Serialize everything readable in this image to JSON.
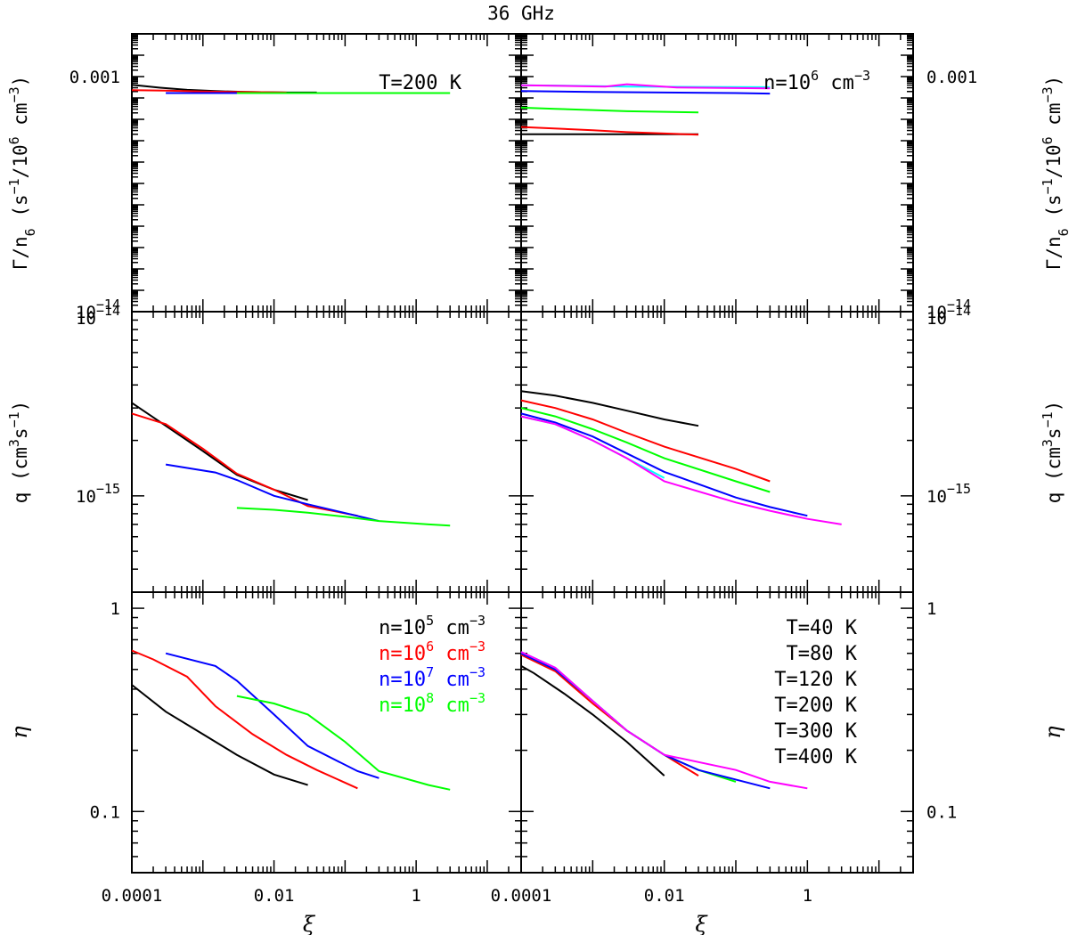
{
  "title": "36 GHz",
  "chart_data": {
    "type": "line",
    "x_axis": {
      "label": "ξ",
      "scale": "log",
      "range": [
        0.0001,
        30
      ],
      "tick_labels": [
        "0.0001",
        "0.01",
        "1"
      ]
    },
    "rows": [
      {
        "id": "gamma",
        "ylabel": "Γ/n6 (s−1/106 cm−3)",
        "scale": "log",
        "range": [
          1e-14,
          0.1
        ],
        "tick_labels": [
          "10−14",
          "0.001"
        ]
      },
      {
        "id": "q",
        "ylabel": "q (cm3s−1)",
        "scale": "log",
        "range": [
          3e-16,
          1e-14
        ],
        "tick_labels": [
          "10−14",
          "10−15"
        ]
      },
      {
        "id": "eta",
        "ylabel": "η",
        "scale": "log",
        "range": [
          0.05,
          1.2
        ],
        "tick_labels": [
          "1",
          "0.1"
        ]
      }
    ],
    "panels": [
      {
        "row": "gamma",
        "col": "left",
        "annotation": "T=200 K",
        "series": [
          {
            "color": "#000000",
            "x": [
              0.0001,
              0.00025,
              0.0006,
              0.0015,
              0.004,
              0.015,
              0.04
            ],
            "y": [
              0.00041,
              0.0003,
              0.00024,
              0.00021,
              0.00019,
              0.00018,
              0.00018
            ]
          },
          {
            "color": "#ff0000",
            "x": [
              0.0001,
              0.0003,
              0.001,
              0.004,
              0.015
            ],
            "y": [
              0.00023,
              0.00022,
              0.0002,
              0.00019,
              0.00018
            ]
          },
          {
            "color": "#0000ff",
            "x": [
              0.0003,
              0.001,
              0.004,
              0.02,
              0.3
            ],
            "y": [
              0.00017,
              0.00017,
              0.00017,
              0.00017,
              0.00017
            ]
          },
          {
            "color": "#00ff00",
            "x": [
              0.003,
              0.01,
              0.03,
              0.3,
              3.0
            ],
            "y": [
              0.00017,
              0.00017,
              0.00017,
              0.00017,
              0.00017
            ]
          }
        ]
      },
      {
        "row": "gamma",
        "col": "right",
        "annotation": "n=10^6 cm^-3",
        "annotation_parts": {
          "base": "n=10",
          "exp1": "6",
          "mid": " cm",
          "exp2": "−3"
        },
        "series": [
          {
            "color": "#000000",
            "x": [
              0.0001,
              0.03
            ],
            "y": [
              2e-06,
              2e-06
            ]
          },
          {
            "color": "#ff0000",
            "x": [
              0.0001,
              0.001,
              0.003,
              0.03
            ],
            "y": [
              4.4e-06,
              3.1e-06,
              2.5e-06,
              1.9e-06
            ]
          },
          {
            "color": "#00ff00",
            "x": [
              0.0001,
              0.0003,
              0.001,
              0.003,
              0.03
            ],
            "y": [
              3.5e-05,
              3.1e-05,
              2.7e-05,
              2.4e-05,
              2.1e-05
            ]
          },
          {
            "color": "#0000ff",
            "x": [
              0.0001,
              0.001,
              0.01,
              0.1,
              0.3
            ],
            "y": [
              0.00021,
              0.00019,
              0.00018,
              0.00017,
              0.00016
            ]
          },
          {
            "color": "#00ffff",
            "x": [
              0.0001,
              0.001,
              0.003,
              0.03,
              0.3
            ],
            "y": [
              0.00039,
              0.00036,
              0.00034,
              0.00033,
              0.00032
            ]
          },
          {
            "color": "#ff00ff",
            "x": [
              0.0001,
              0.0015,
              0.003,
              0.015,
              0.3
            ],
            "y": [
              0.00039,
              0.00034,
              0.00044,
              0.00031,
              0.00028
            ]
          }
        ]
      },
      {
        "row": "q",
        "col": "left",
        "series": [
          {
            "color": "#000000",
            "x": [
              0.0001,
              0.0003,
              0.001,
              0.003,
              0.01,
              0.03
            ],
            "y": [
              3.2e-15,
              2.4e-15,
              1.75e-15,
              1.3e-15,
              1.08e-15,
              9.5e-16
            ]
          },
          {
            "color": "#ff0000",
            "x": [
              0.0001,
              0.0003,
              0.001,
              0.003,
              0.01,
              0.03,
              0.15
            ],
            "y": [
              2.8e-15,
              2.45e-15,
              1.8e-15,
              1.32e-15,
              1.08e-15,
              8.8e-16,
              7.8e-16
            ]
          },
          {
            "color": "#0000ff",
            "x": [
              0.0003,
              0.0015,
              0.003,
              0.01,
              0.03,
              0.3
            ],
            "y": [
              1.48e-15,
              1.34e-15,
              1.22e-15,
              1e-15,
              9e-16,
              7.3e-16
            ]
          },
          {
            "color": "#00ff00",
            "x": [
              0.003,
              0.01,
              0.03,
              0.1,
              0.3,
              1.5,
              3.0
            ],
            "y": [
              8.6e-16,
              8.4e-16,
              8.1e-16,
              7.7e-16,
              7.3e-16,
              7e-16,
              6.9e-16
            ]
          }
        ]
      },
      {
        "row": "q",
        "col": "right",
        "series": [
          {
            "color": "#000000",
            "x": [
              0.0001,
              0.0003,
              0.001,
              0.003,
              0.01,
              0.03
            ],
            "y": [
              3.7e-15,
              3.5e-15,
              3.2e-15,
              2.9e-15,
              2.6e-15,
              2.4e-15
            ]
          },
          {
            "color": "#ff0000",
            "x": [
              0.0001,
              0.0003,
              0.001,
              0.003,
              0.01,
              0.1,
              0.3
            ],
            "y": [
              3.3e-15,
              3e-15,
              2.6e-15,
              2.2e-15,
              1.85e-15,
              1.4e-15,
              1.2e-15
            ]
          },
          {
            "color": "#00ff00",
            "x": [
              0.0001,
              0.0003,
              0.001,
              0.003,
              0.01,
              0.1,
              0.3
            ],
            "y": [
              3e-15,
              2.7e-15,
              2.3e-15,
              1.95e-15,
              1.6e-15,
              1.2e-15,
              1.05e-15
            ]
          },
          {
            "color": "#0000ff",
            "x": [
              0.0001,
              0.0003,
              0.001,
              0.003,
              0.01,
              0.1,
              0.3,
              1.0
            ],
            "y": [
              2.8e-15,
              2.5e-15,
              2.1e-15,
              1.7e-15,
              1.35e-15,
              9.8e-16,
              8.7e-16,
              7.8e-16
            ]
          },
          {
            "color": "#00ffff",
            "x": [
              0.0001,
              0.0003,
              0.001,
              0.003,
              0.01
            ],
            "y": [
              2.7e-15,
              2.45e-15,
              2e-15,
              1.6e-15,
              1.25e-15
            ]
          },
          {
            "color": "#ff00ff",
            "x": [
              0.0001,
              0.0003,
              0.001,
              0.003,
              0.01,
              0.1,
              0.3,
              1.0,
              3.0
            ],
            "y": [
              2.7e-15,
              2.45e-15,
              2e-15,
              1.6e-15,
              1.2e-15,
              9.2e-16,
              8.3e-16,
              7.5e-16,
              7e-16
            ]
          }
        ]
      },
      {
        "row": "eta",
        "col": "left",
        "annotation_list": [
          {
            "color": "#000000",
            "base": "n=10",
            "exp1": "5",
            "mid": " cm",
            "exp2": "−3"
          },
          {
            "color": "#ff0000",
            "base": "n=10",
            "exp1": "6",
            "mid": " cm",
            "exp2": "−3"
          },
          {
            "color": "#0000ff",
            "base": "n=10",
            "exp1": "7",
            "mid": " cm",
            "exp2": "−3"
          },
          {
            "color": "#00ff00",
            "base": "n=10",
            "exp1": "8",
            "mid": " cm",
            "exp2": "−3"
          }
        ],
        "series": [
          {
            "color": "#000000",
            "x": [
              0.0001,
              0.0003,
              0.001,
              0.003,
              0.01,
              0.03
            ],
            "y": [
              0.42,
              0.31,
              0.24,
              0.19,
              0.152,
              0.135
            ]
          },
          {
            "color": "#ff0000",
            "x": [
              0.0001,
              0.0002,
              0.0006,
              0.0015,
              0.005,
              0.015,
              0.04,
              0.15
            ],
            "y": [
              0.62,
              0.56,
              0.46,
              0.33,
              0.24,
              0.19,
              0.16,
              0.13
            ]
          },
          {
            "color": "#0000ff",
            "x": [
              0.0003,
              0.0015,
              0.003,
              0.01,
              0.03,
              0.15,
              0.3
            ],
            "y": [
              0.6,
              0.52,
              0.44,
              0.3,
              0.21,
              0.158,
              0.146
            ]
          },
          {
            "color": "#00ff00",
            "x": [
              0.003,
              0.01,
              0.03,
              0.1,
              0.3,
              1.5,
              3.0
            ],
            "y": [
              0.37,
              0.34,
              0.3,
              0.22,
              0.158,
              0.135,
              0.128
            ]
          }
        ]
      },
      {
        "row": "eta",
        "col": "right",
        "annotation_list": [
          {
            "color": "#000000",
            "text": "T=40 K"
          },
          {
            "color": "#ff0000",
            "text": "T=80 K"
          },
          {
            "color": "#00ff00",
            "text": "T=120 K"
          },
          {
            "color": "#0000ff",
            "text": "T=200 K"
          },
          {
            "color": "#00ffff",
            "text": "T=300 K"
          },
          {
            "color": "#ff00ff",
            "text": "T=400 K"
          }
        ],
        "series": [
          {
            "color": "#000000",
            "x": [
              0.0001,
              0.00015,
              0.0004,
              0.001,
              0.003,
              0.01
            ],
            "y": [
              0.52,
              0.48,
              0.38,
              0.3,
              0.22,
              0.15
            ]
          },
          {
            "color": "#ff0000",
            "x": [
              0.0001,
              0.0003,
              0.001,
              0.003,
              0.01,
              0.03
            ],
            "y": [
              0.59,
              0.49,
              0.34,
              0.25,
              0.19,
              0.15
            ]
          },
          {
            "color": "#00ff00",
            "x": [
              0.0001,
              0.0003,
              0.001,
              0.003,
              0.01,
              0.03,
              0.1
            ],
            "y": [
              0.6,
              0.5,
              0.35,
              0.25,
              0.19,
              0.16,
              0.14
            ]
          },
          {
            "color": "#0000ff",
            "x": [
              0.0001,
              0.0003,
              0.001,
              0.003,
              0.01,
              0.03,
              0.3
            ],
            "y": [
              0.6,
              0.5,
              0.35,
              0.25,
              0.19,
              0.16,
              0.13
            ]
          },
          {
            "color": "#00ffff",
            "x": [
              0.0001,
              0.0003,
              0.001,
              0.003,
              0.01
            ],
            "y": [
              0.61,
              0.51,
              0.35,
              0.25,
              0.19
            ]
          },
          {
            "color": "#ff00ff",
            "x": [
              0.0001,
              0.0003,
              0.001,
              0.003,
              0.01,
              0.1,
              0.3,
              1.0
            ],
            "y": [
              0.61,
              0.51,
              0.35,
              0.25,
              0.19,
              0.16,
              0.14,
              0.13
            ]
          }
        ]
      }
    ]
  }
}
